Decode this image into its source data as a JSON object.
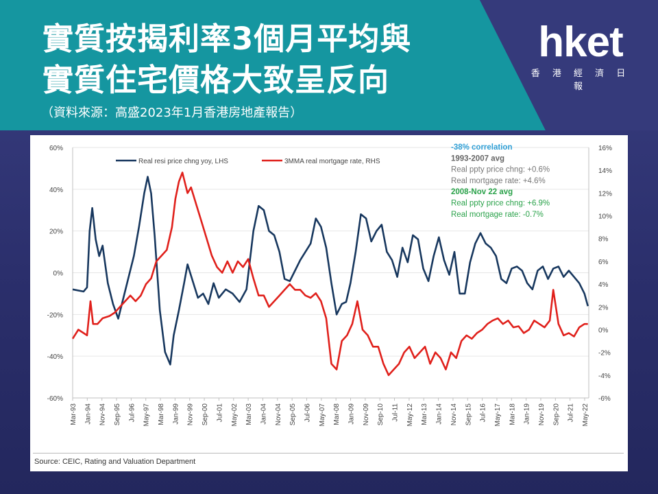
{
  "header": {
    "title_line1": "實質按揭利率3個月平均與",
    "title_line2": "實質住宅價格大致呈反向",
    "subtitle": "（資料來源：高盛2023年1月香港房地產報告）"
  },
  "logo": {
    "main": "hket",
    "sub": "香 港 經 濟 日 報"
  },
  "colors": {
    "banner": "#1596a0",
    "series1": "#17375e",
    "series2": "#e0201b",
    "green_text": "#2aa24a",
    "cyan_text": "#2f9fd6"
  },
  "chart_source": "Source: CEIC, Rating and Valuation Department",
  "annotations": {
    "correlation": "-38% correlation",
    "period1": "1993-2007 avg",
    "period1_price": "Real ppty price chng: +0.6%",
    "period1_rate": "Real mortgage rate: +4.6%",
    "period2": "2008-Nov 22 avg",
    "period2_price": "Real ppty price chng: +6.9%",
    "period2_rate": "Real mortgage rate: -0.7%"
  },
  "chart_data": {
    "type": "line",
    "x_tick_labels": [
      "Mar-93",
      "Jan-94",
      "Nov-94",
      "Sep-95",
      "Jul-96",
      "May-97",
      "Mar-98",
      "Jan-99",
      "Nov-99",
      "Sep-00",
      "Jul-01",
      "May-02",
      "Mar-03",
      "Jan-04",
      "Nov-04",
      "Sep-05",
      "Jul-06",
      "May-07",
      "Mar-08",
      "Jan-09",
      "Nov-09",
      "Sep-10",
      "Jul-11",
      "May-12",
      "Mar-13",
      "Jan-14",
      "Nov-14",
      "Sep-15",
      "Jul-16",
      "May-17",
      "Mar-18",
      "Jan-19",
      "Nov-19",
      "Sep-20",
      "Jul-21",
      "May-22"
    ],
    "y_left": {
      "ticks": [
        "60%",
        "40%",
        "20%",
        "0%",
        "-20%",
        "-40%",
        "-60%"
      ],
      "range": [
        -60,
        60
      ]
    },
    "y_right": {
      "ticks": [
        "16%",
        "14%",
        "12%",
        "10%",
        "8%",
        "6%",
        "4%",
        "2%",
        "0%",
        "-2%",
        "-4%",
        "-6%"
      ],
      "range": [
        -6,
        16
      ]
    },
    "series": [
      {
        "name": "Real resi price chng yoy, LHS",
        "axis": "left",
        "x": [
          1993.17,
          1993.8,
          1994.0,
          1994.15,
          1994.3,
          1994.5,
          1994.7,
          1994.9,
          1995.2,
          1995.5,
          1995.8,
          1996.1,
          1996.4,
          1996.7,
          1997.0,
          1997.3,
          1997.5,
          1997.7,
          1997.9,
          1998.2,
          1998.5,
          1998.8,
          1999.0,
          1999.3,
          1999.6,
          1999.8,
          2000.1,
          2000.4,
          2000.7,
          2001.0,
          2001.3,
          2001.6,
          2002.0,
          2002.4,
          2002.8,
          2003.2,
          2003.6,
          2003.9,
          2004.2,
          2004.5,
          2004.8,
          2005.1,
          2005.4,
          2005.7,
          2006.0,
          2006.3,
          2006.6,
          2006.9,
          2007.2,
          2007.5,
          2007.8,
          2008.1,
          2008.4,
          2008.7,
          2008.95,
          2009.2,
          2009.5,
          2009.8,
          2010.1,
          2010.4,
          2010.7,
          2011.0,
          2011.3,
          2011.6,
          2011.9,
          2012.2,
          2012.5,
          2012.8,
          2013.1,
          2013.4,
          2013.7,
          2014.0,
          2014.3,
          2014.6,
          2014.9,
          2015.2,
          2015.5,
          2015.8,
          2016.1,
          2016.4,
          2016.7,
          2017.0,
          2017.3,
          2017.6,
          2017.9,
          2018.2,
          2018.5,
          2018.8,
          2019.1,
          2019.4,
          2019.7,
          2020.0,
          2020.3,
          2020.6,
          2020.9,
          2021.2,
          2021.5,
          2021.8,
          2022.1,
          2022.4,
          2022.7,
          2022.9
        ],
        "y": [
          -8,
          -9,
          -7,
          20,
          31,
          16,
          8,
          13,
          -5,
          -15,
          -22,
          -12,
          -2,
          8,
          22,
          38,
          46,
          38,
          18,
          -18,
          -38,
          -44,
          -30,
          -18,
          -5,
          4,
          -4,
          -12,
          -10,
          -15,
          -5,
          -12,
          -8,
          -10,
          -14,
          -8,
          20,
          32,
          30,
          20,
          18,
          10,
          -3,
          -4,
          1,
          6,
          10,
          14,
          26,
          22,
          12,
          -5,
          -20,
          -15,
          -14,
          -5,
          10,
          28,
          26,
          15,
          20,
          23,
          10,
          6,
          -2,
          12,
          5,
          18,
          16,
          2,
          -4,
          8,
          17,
          6,
          -1,
          10,
          -10,
          -10,
          5,
          14,
          19,
          14,
          12,
          8,
          -3,
          -5,
          2,
          3,
          1,
          -5,
          -8,
          1,
          3,
          -3,
          2,
          3,
          -2,
          1,
          -2,
          -5,
          -10,
          -16
        ]
      },
      {
        "name": "3MMA real mortgage rate, RHS",
        "axis": "right",
        "x": [
          1993.17,
          1993.5,
          1993.8,
          1994.0,
          1994.2,
          1994.35,
          1994.6,
          1994.9,
          1995.3,
          1995.6,
          1995.9,
          1996.2,
          1996.5,
          1996.8,
          1997.1,
          1997.4,
          1997.7,
          1998.0,
          1998.3,
          1998.6,
          1998.9,
          1999.1,
          1999.3,
          1999.5,
          1999.8,
          2000.0,
          2000.3,
          2000.6,
          2000.9,
          2001.2,
          2001.5,
          2001.8,
          2002.1,
          2002.4,
          2002.7,
          2003.0,
          2003.3,
          2003.6,
          2003.9,
          2004.2,
          2004.5,
          2004.8,
          2005.1,
          2005.4,
          2005.7,
          2006.0,
          2006.3,
          2006.6,
          2006.9,
          2007.2,
          2007.5,
          2007.8,
          2008.1,
          2008.4,
          2008.7,
          2009.0,
          2009.3,
          2009.6,
          2009.9,
          2010.2,
          2010.5,
          2010.8,
          2011.1,
          2011.4,
          2011.7,
          2012.0,
          2012.3,
          2012.6,
          2012.9,
          2013.2,
          2013.5,
          2013.8,
          2014.1,
          2014.4,
          2014.7,
          2015.0,
          2015.3,
          2015.6,
          2015.9,
          2016.2,
          2016.5,
          2016.8,
          2017.1,
          2017.4,
          2017.7,
          2018.0,
          2018.3,
          2018.6,
          2018.9,
          2019.2,
          2019.5,
          2019.8,
          2020.1,
          2020.4,
          2020.7,
          2020.9,
          2021.2,
          2021.5,
          2021.8,
          2022.1,
          2022.4,
          2022.7,
          2022.9
        ],
        "y": [
          -0.8,
          0,
          -0.3,
          -0.5,
          2.5,
          0.5,
          0.5,
          1.0,
          1.2,
          1.5,
          2.0,
          2.5,
          3.0,
          2.5,
          3.0,
          4.0,
          4.5,
          6.0,
          6.5,
          7.0,
          9.0,
          11.5,
          13.0,
          13.8,
          12.0,
          12.5,
          11.0,
          9.5,
          8.0,
          6.5,
          5.5,
          5.0,
          6.0,
          5.0,
          6.0,
          5.5,
          6.2,
          4.5,
          3.0,
          3.0,
          2.0,
          2.5,
          3.0,
          3.5,
          4.0,
          3.5,
          3.5,
          3.0,
          2.8,
          3.2,
          2.5,
          1.0,
          -3.0,
          -3.5,
          -1.0,
          -0.5,
          0.5,
          2.5,
          0.0,
          -0.5,
          -1.5,
          -1.5,
          -3.0,
          -4.0,
          -3.5,
          -3.0,
          -2.0,
          -1.5,
          -2.5,
          -2.0,
          -1.5,
          -3.0,
          -2.0,
          -2.5,
          -3.5,
          -2.0,
          -2.5,
          -1.0,
          -0.5,
          -0.8,
          -0.3,
          0.0,
          0.5,
          0.8,
          1.0,
          0.5,
          0.8,
          0.2,
          0.3,
          -0.3,
          0.0,
          0.8,
          0.5,
          0.2,
          0.8,
          3.5,
          0.5,
          -0.5,
          -0.3,
          -0.6,
          0.2,
          0.5,
          0.5
        ]
      }
    ]
  }
}
